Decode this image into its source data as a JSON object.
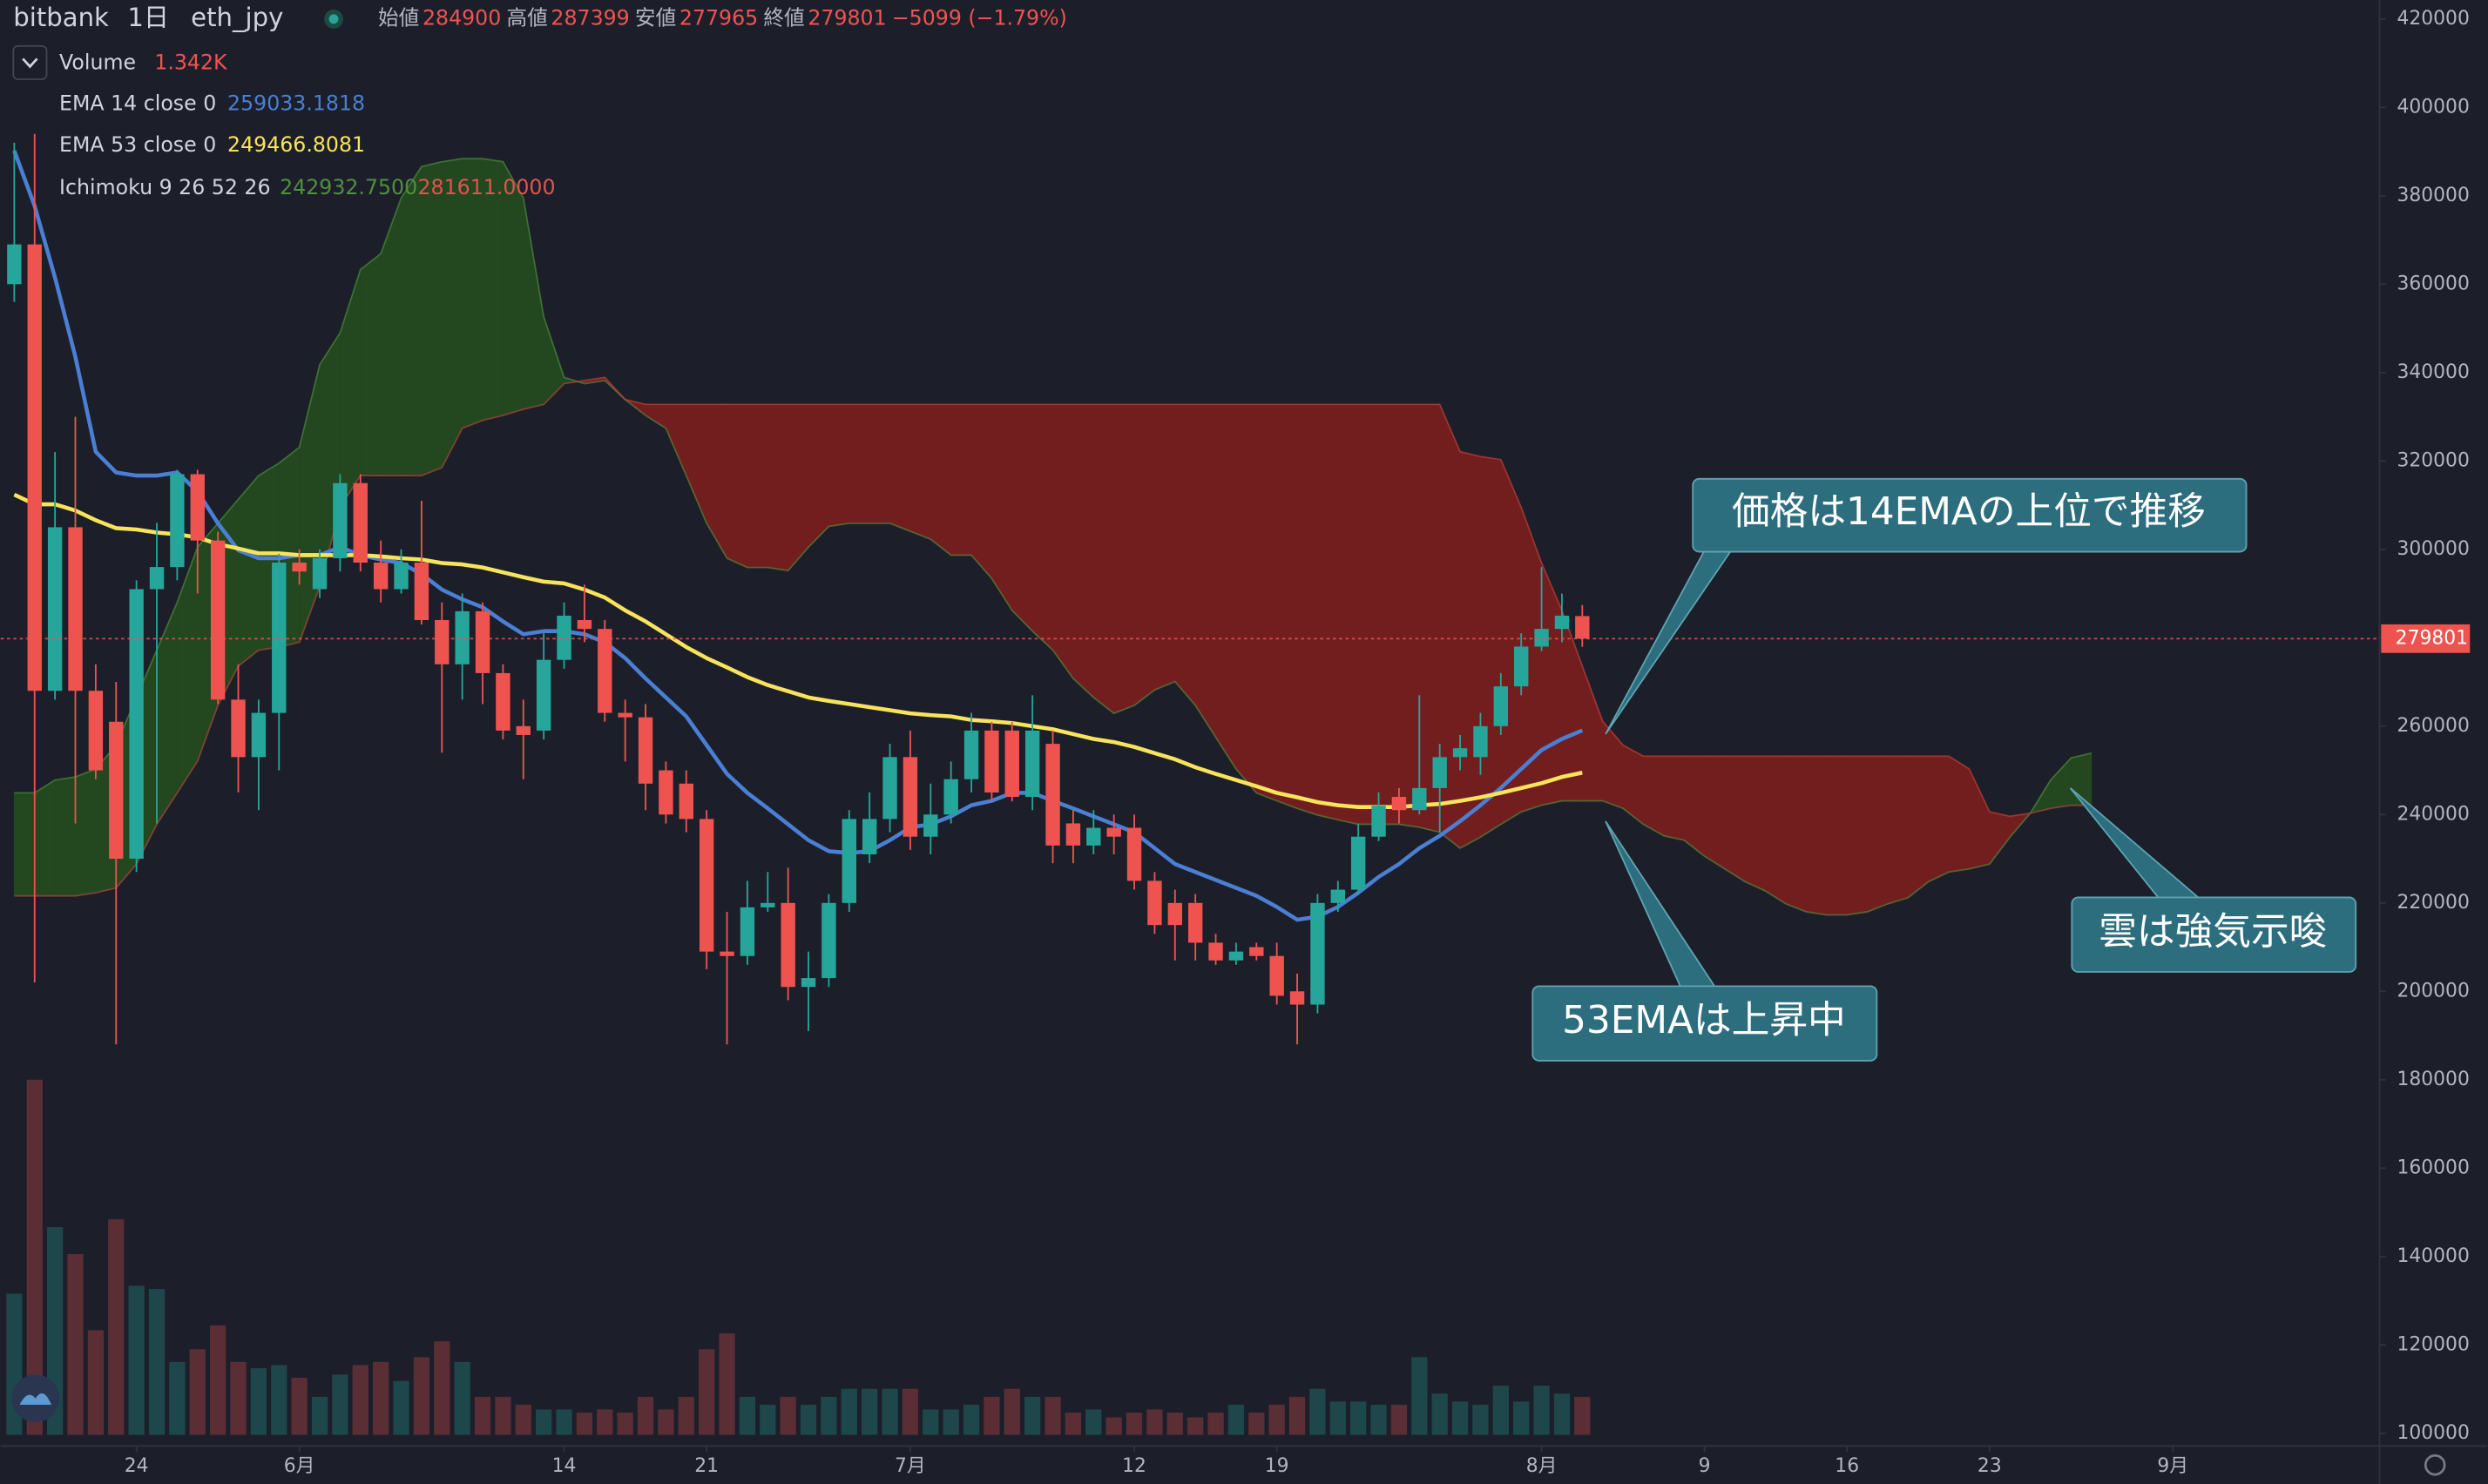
{
  "chart_data": {
    "type": "candlestick",
    "header": {
      "exchange": "bitbank",
      "interval": "1日",
      "symbol": "eth_jpy",
      "open_label": "始値",
      "high_label": "高値",
      "low_label": "安値",
      "close_label": "終値",
      "change": "−5099 (−1.79%)"
    },
    "ylim": [
      97140,
      424300
    ],
    "yticks": [
      100000,
      120000,
      140000,
      160000,
      180000,
      200000,
      220000,
      240000,
      260000,
      280000,
      300000,
      320000,
      340000,
      360000,
      380000,
      400000,
      420000
    ],
    "xlim": [
      -0.67,
      116.15
    ],
    "xticks": [
      {
        "value": 6,
        "label": "24"
      },
      {
        "value": 14,
        "label": "6月"
      },
      {
        "value": 27,
        "label": "14"
      },
      {
        "value": 34,
        "label": "21"
      },
      {
        "value": 44,
        "label": "7月"
      },
      {
        "value": 55,
        "label": "12"
      },
      {
        "value": 62,
        "label": "19"
      },
      {
        "value": 75,
        "label": "8月"
      },
      {
        "value": 83,
        "label": "9"
      },
      {
        "value": 90,
        "label": "16"
      },
      {
        "value": 97,
        "label": "23"
      },
      {
        "value": 106,
        "label": "9月"
      }
    ],
    "grid": false,
    "up_color": "#26a69a",
    "down_color": "#ef5350",
    "open": [
      360000,
      369000,
      268000,
      305000,
      268000,
      261000,
      230000,
      291000,
      296000,
      317000,
      302000,
      266000,
      253000,
      263000,
      297000,
      291000,
      298000,
      315000,
      297000,
      291000,
      297000,
      284000,
      274000,
      286000,
      272000,
      260000,
      259000,
      275000,
      284000,
      282000,
      263000,
      262000,
      250000,
      247000,
      239000,
      209000,
      208000,
      219000,
      220000,
      201000,
      203000,
      220000,
      231000,
      239000,
      253000,
      235000,
      240000,
      248000,
      259000,
      259000,
      244000,
      256000,
      238000,
      233000,
      237000,
      237000,
      225000,
      220000,
      220000,
      211000,
      207000,
      210000,
      208000,
      200000,
      197000,
      220000,
      223000,
      235000,
      244000,
      241000,
      246000,
      253000,
      253000,
      260000,
      269000,
      278000,
      282000,
      284900
    ],
    "high": [
      392000,
      394000,
      322000,
      330000,
      274000,
      270000,
      293000,
      306000,
      318000,
      318000,
      304000,
      274000,
      266000,
      299000,
      300000,
      300000,
      317000,
      317000,
      302000,
      300000,
      311000,
      288000,
      290000,
      288000,
      274000,
      266000,
      281000,
      288000,
      292000,
      284000,
      266000,
      265000,
      252000,
      250000,
      241000,
      218000,
      225000,
      227000,
      228000,
      209000,
      222000,
      241000,
      245000,
      256000,
      259000,
      247000,
      252000,
      263000,
      261000,
      261000,
      267000,
      259000,
      241000,
      241000,
      240000,
      240000,
      227000,
      223000,
      222000,
      213000,
      211000,
      211000,
      211000,
      204000,
      222000,
      225000,
      238000,
      245000,
      246000,
      267000,
      256000,
      258000,
      263000,
      272000,
      281000,
      296000,
      290000,
      287399
    ],
    "low": [
      356000,
      202000,
      266000,
      238000,
      248000,
      188000,
      227000,
      238000,
      293000,
      290000,
      265000,
      245000,
      241000,
      250000,
      292000,
      289000,
      295000,
      295000,
      288000,
      290000,
      283000,
      254000,
      266000,
      265000,
      257000,
      248000,
      257000,
      273000,
      279000,
      261000,
      252000,
      241000,
      238000,
      236000,
      205000,
      188000,
      206000,
      218000,
      198000,
      191000,
      201000,
      218000,
      229000,
      236000,
      232000,
      231000,
      238000,
      245000,
      243000,
      243000,
      241000,
      229000,
      229000,
      231000,
      231000,
      223000,
      213000,
      207000,
      207000,
      206000,
      206000,
      207000,
      197000,
      188000,
      195000,
      218000,
      222000,
      234000,
      238000,
      240000,
      236000,
      250000,
      249000,
      258000,
      267000,
      277000,
      279000,
      277965
    ],
    "close": [
      369000,
      268000,
      305000,
      268000,
      250000,
      230000,
      291000,
      296000,
      317000,
      302000,
      266000,
      253000,
      263000,
      297000,
      295000,
      298000,
      315000,
      297000,
      291000,
      297000,
      284000,
      274000,
      286000,
      272000,
      259000,
      258000,
      275000,
      285000,
      282000,
      263000,
      262000,
      247000,
      240000,
      239000,
      209000,
      208000,
      219000,
      220000,
      201000,
      203000,
      220000,
      239000,
      239000,
      253000,
      235000,
      240000,
      248000,
      259000,
      245000,
      244000,
      259000,
      233000,
      233000,
      237000,
      235000,
      225000,
      215000,
      215000,
      211000,
      207000,
      209000,
      208000,
      199000,
      197000,
      220000,
      223000,
      235000,
      242000,
      241000,
      246000,
      253000,
      255000,
      260000,
      269000,
      278000,
      282000,
      285000,
      279801
    ],
    "volume": {
      "name": "Volume",
      "value_label": "1.342K",
      "values": [
        4984,
        12544,
        7336,
        6384,
        3696,
        7616,
        5264,
        5152,
        2576,
        3024,
        3864,
        2576,
        2352,
        2464,
        2016,
        1344,
        2128,
        2464,
        2576,
        1904,
        2744,
        3304,
        2576,
        1344,
        1344,
        1064,
        896,
        896,
        784,
        896,
        784,
        1344,
        896,
        1344,
        3024,
        3584,
        1344,
        1064,
        1344,
        1064,
        1344,
        1624,
        1624,
        1624,
        1624,
        896,
        896,
        1064,
        1344,
        1624,
        1344,
        1344,
        784,
        896,
        616,
        784,
        896,
        784,
        616,
        784,
        1064,
        784,
        1064,
        1344,
        1624,
        1176,
        1176,
        1064,
        1064,
        2744,
        1456,
        1176,
        1064,
        1736,
        1176,
        1736,
        1456,
        1342
      ]
    },
    "series": [
      {
        "name": "EMA 14 close 0",
        "color": "#4a7fd4",
        "values": [
          390200,
          377700,
          361500,
          343600,
          322100,
          317400,
          316700,
          316700,
          317400,
          313100,
          305900,
          299800,
          298000,
          298000,
          298700,
          298700,
          300500,
          298700,
          297700,
          296900,
          294400,
          290900,
          288700,
          286900,
          283700,
          280800,
          281500,
          281500,
          280800,
          279000,
          275400,
          270800,
          266500,
          262200,
          255700,
          249200,
          244900,
          241400,
          237800,
          234200,
          231700,
          231300,
          231700,
          234200,
          237100,
          237800,
          239600,
          242100,
          243100,
          244900,
          244900,
          243100,
          241400,
          239600,
          237800,
          236000,
          232400,
          228800,
          227000,
          225200,
          223400,
          221600,
          219100,
          216200,
          216900,
          219100,
          222300,
          225900,
          228800,
          232400,
          235200,
          238500,
          242100,
          246000,
          250300,
          254600,
          257100,
          259033.1818
        ]
      },
      {
        "name": "EMA 53 close 0",
        "color": "#f7e35c",
        "values": [
          312400,
          310200,
          310200,
          308800,
          306600,
          304800,
          304500,
          303800,
          303400,
          302700,
          301200,
          300200,
          299100,
          299100,
          298700,
          298700,
          298700,
          298700,
          298400,
          298000,
          297700,
          296900,
          296600,
          295900,
          294800,
          293700,
          292700,
          292300,
          290900,
          289100,
          286200,
          283700,
          280800,
          277900,
          275400,
          273300,
          271100,
          269300,
          267900,
          266500,
          265700,
          265000,
          264300,
          263600,
          262900,
          262500,
          262200,
          261400,
          261100,
          260700,
          260000,
          259300,
          258200,
          257100,
          256400,
          255300,
          253900,
          252500,
          250700,
          249200,
          247800,
          246400,
          244900,
          243900,
          242800,
          242100,
          241700,
          241700,
          241700,
          242100,
          242400,
          243100,
          243900,
          244900,
          246000,
          247100,
          248500,
          249466.8081
        ]
      }
    ],
    "ichimoku": {
      "name": "Ichimoku 9 26 52 26",
      "span_a_label": "242932.7500",
      "span_b_label": "281611.0000",
      "bull_color": "#23471f",
      "bear_color": "#721e1e",
      "span_a_color": "#4f8f3f",
      "span_b_color": "#c0433c",
      "span_a": [
        244900,
        244900,
        247800,
        248500,
        250300,
        255700,
        266500,
        277200,
        288000,
        300500,
        305900,
        311300,
        316700,
        319500,
        323100,
        341800,
        349000,
        363300,
        366900,
        379500,
        386600,
        387700,
        388400,
        388400,
        387700,
        379500,
        352600,
        338900,
        337500,
        338200,
        333900,
        330300,
        327400,
        316700,
        305900,
        298000,
        295900,
        295900,
        295200,
        300500,
        305200,
        305900,
        305900,
        305900,
        304100,
        302300,
        298700,
        298700,
        293400,
        286200,
        281500,
        277200,
        270800,
        266500,
        262900,
        264700,
        268200,
        270100,
        264700,
        257500,
        250300,
        244900,
        243100,
        241400,
        239900,
        238800,
        237800,
        237800,
        237800,
        237100,
        236000,
        232400,
        234900,
        237800,
        240600,
        242100,
        243100,
        243100,
        243100,
        241400,
        237800,
        235200,
        234200,
        230600,
        227700,
        224800,
        222700,
        219800,
        218000,
        217300,
        217300,
        218000,
        219800,
        221200,
        224800,
        227000,
        227700,
        228800,
        234900,
        240300,
        247800,
        252800,
        253900
      ],
      "span_b": [
        221600,
        221600,
        221600,
        221600,
        222300,
        223400,
        228800,
        237800,
        244900,
        252100,
        264700,
        273600,
        277200,
        277900,
        279000,
        291600,
        309500,
        316700,
        316700,
        316700,
        316700,
        318500,
        327400,
        329200,
        330300,
        331700,
        332800,
        337500,
        338200,
        338900,
        333900,
        332800,
        332800,
        332800,
        332800,
        332800,
        332800,
        332800,
        332800,
        332800,
        332800,
        332800,
        332800,
        332800,
        332800,
        332800,
        332800,
        332800,
        332800,
        332800,
        332800,
        332800,
        332800,
        332800,
        332800,
        332800,
        332800,
        332800,
        332800,
        332800,
        332800,
        332800,
        332800,
        332800,
        332800,
        332800,
        332800,
        332800,
        332800,
        332800,
        332800,
        322100,
        321000,
        320300,
        309500,
        296900,
        286200,
        273600,
        261100,
        255700,
        253200,
        253200,
        253200,
        253200,
        253200,
        253200,
        253200,
        253200,
        253200,
        253200,
        253200,
        253200,
        253200,
        253200,
        253200,
        253200,
        250300,
        240600,
        239600,
        240300,
        241400,
        242100,
        242100
      ]
    },
    "annotations": [
      "価格は14EMAの上位で推移",
      "53EMAは上昇中",
      "雲は強気示唆"
    ]
  }
}
